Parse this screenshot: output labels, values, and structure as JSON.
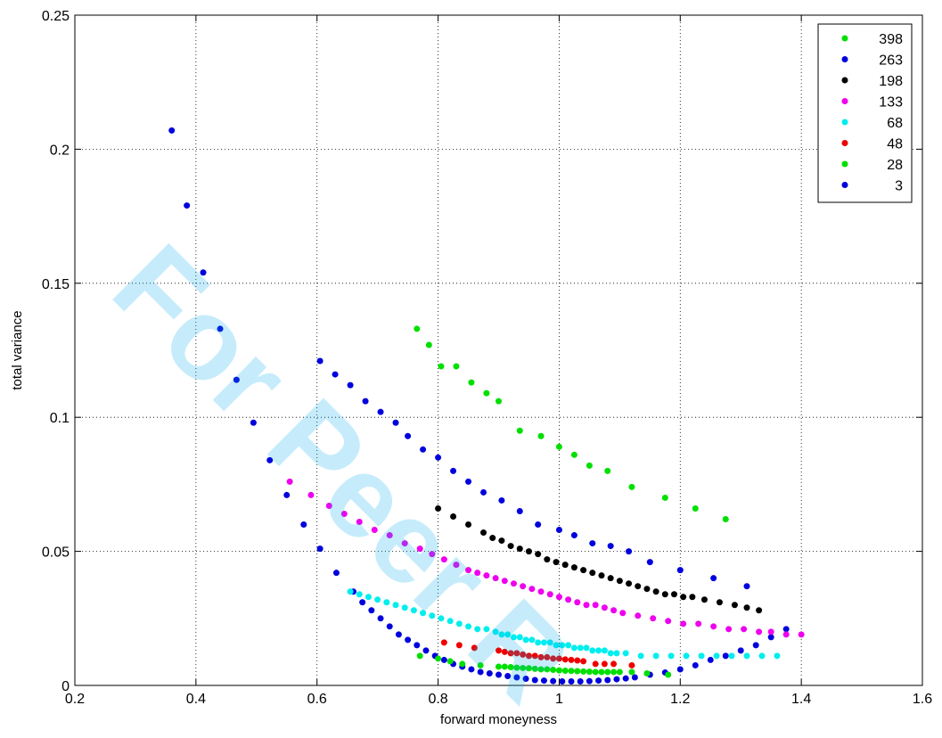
{
  "chart_data": {
    "type": "scatter",
    "title": "",
    "xlabel": "forward moneyness",
    "ylabel": "total variance",
    "xlim": [
      0.2,
      1.6
    ],
    "ylim": [
      0,
      0.25
    ],
    "xticks": [
      0.2,
      0.4,
      0.6,
      0.8,
      1,
      1.2,
      1.4,
      1.6
    ],
    "yticks": [
      0,
      0.05,
      0.1,
      0.15,
      0.2,
      0.25
    ],
    "xtick_labels": [
      "0.2",
      "0.4",
      "0.6",
      "0.8",
      "1",
      "1.2",
      "1.4",
      "1.6"
    ],
    "ytick_labels": [
      "0",
      "0.05",
      "0.1",
      "0.15",
      "0.2",
      "0.25"
    ],
    "grid": true,
    "legend_position": "top-right",
    "watermark": "For Peer R",
    "series": [
      {
        "name": "398",
        "color": "#00e000",
        "x": [
          0.765,
          0.785,
          0.805,
          0.83,
          0.855,
          0.88,
          0.9,
          0.935,
          0.97,
          1.0,
          1.025,
          1.05,
          1.08,
          1.12,
          1.175,
          1.225,
          1.275
        ],
        "y": [
          0.133,
          0.127,
          0.119,
          0.119,
          0.113,
          0.109,
          0.106,
          0.095,
          0.093,
          0.089,
          0.086,
          0.082,
          0.08,
          0.074,
          0.07,
          0.066,
          0.062
        ]
      },
      {
        "name": "263",
        "color": "#0000dd",
        "x": [
          0.605,
          0.63,
          0.655,
          0.68,
          0.705,
          0.73,
          0.75,
          0.775,
          0.8,
          0.825,
          0.85,
          0.875,
          0.905,
          0.935,
          0.965,
          1.0,
          1.025,
          1.055,
          1.085,
          1.115,
          1.15,
          1.2,
          1.255,
          1.31
        ],
        "y": [
          0.121,
          0.116,
          0.112,
          0.106,
          0.102,
          0.098,
          0.093,
          0.088,
          0.085,
          0.08,
          0.076,
          0.072,
          0.069,
          0.065,
          0.06,
          0.058,
          0.056,
          0.053,
          0.052,
          0.05,
          0.046,
          0.043,
          0.04,
          0.037
        ]
      },
      {
        "name": "198",
        "color": "#000000",
        "x": [
          0.8,
          0.825,
          0.85,
          0.875,
          0.89,
          0.905,
          0.92,
          0.935,
          0.95,
          0.965,
          0.98,
          0.995,
          1.01,
          1.025,
          1.04,
          1.055,
          1.07,
          1.085,
          1.1,
          1.115,
          1.13,
          1.145,
          1.16,
          1.175,
          1.19,
          1.205,
          1.22,
          1.24,
          1.265,
          1.29,
          1.31,
          1.33
        ],
        "y": [
          0.066,
          0.063,
          0.06,
          0.057,
          0.055,
          0.054,
          0.052,
          0.051,
          0.05,
          0.049,
          0.047,
          0.046,
          0.045,
          0.044,
          0.043,
          0.042,
          0.041,
          0.04,
          0.039,
          0.038,
          0.037,
          0.036,
          0.035,
          0.034,
          0.034,
          0.033,
          0.033,
          0.032,
          0.031,
          0.03,
          0.029,
          0.028
        ]
      },
      {
        "name": "133",
        "color": "#ee00ee",
        "x": [
          0.555,
          0.59,
          0.62,
          0.645,
          0.67,
          0.695,
          0.72,
          0.745,
          0.77,
          0.79,
          0.81,
          0.83,
          0.85,
          0.865,
          0.88,
          0.895,
          0.91,
          0.925,
          0.94,
          0.955,
          0.97,
          0.985,
          1.0,
          1.015,
          1.03,
          1.045,
          1.06,
          1.075,
          1.09,
          1.105,
          1.13,
          1.155,
          1.18,
          1.205,
          1.23,
          1.255,
          1.28,
          1.305,
          1.33,
          1.35,
          1.375,
          1.4
        ],
        "y": [
          0.076,
          0.071,
          0.067,
          0.064,
          0.061,
          0.058,
          0.056,
          0.053,
          0.051,
          0.049,
          0.047,
          0.045,
          0.043,
          0.042,
          0.041,
          0.04,
          0.039,
          0.038,
          0.037,
          0.036,
          0.035,
          0.034,
          0.033,
          0.032,
          0.031,
          0.03,
          0.03,
          0.029,
          0.028,
          0.027,
          0.026,
          0.025,
          0.024,
          0.023,
          0.023,
          0.022,
          0.021,
          0.021,
          0.02,
          0.02,
          0.019,
          0.019
        ]
      },
      {
        "name": "68",
        "color": "#00eeee",
        "x": [
          0.655,
          0.67,
          0.685,
          0.7,
          0.715,
          0.73,
          0.745,
          0.76,
          0.775,
          0.79,
          0.805,
          0.82,
          0.835,
          0.85,
          0.865,
          0.88,
          0.895,
          0.905,
          0.915,
          0.925,
          0.935,
          0.945,
          0.955,
          0.965,
          0.975,
          0.985,
          0.995,
          1.005,
          1.015,
          1.025,
          1.035,
          1.045,
          1.055,
          1.065,
          1.075,
          1.085,
          1.095,
          1.11,
          1.135,
          1.16,
          1.185,
          1.21,
          1.235,
          1.26,
          1.285,
          1.31,
          1.335,
          1.36
        ],
        "y": [
          0.035,
          0.034,
          0.033,
          0.032,
          0.031,
          0.03,
          0.029,
          0.028,
          0.027,
          0.026,
          0.025,
          0.024,
          0.023,
          0.022,
          0.021,
          0.021,
          0.02,
          0.019,
          0.019,
          0.018,
          0.018,
          0.017,
          0.017,
          0.016,
          0.016,
          0.016,
          0.015,
          0.015,
          0.015,
          0.014,
          0.014,
          0.014,
          0.013,
          0.013,
          0.013,
          0.012,
          0.012,
          0.012,
          0.011,
          0.011,
          0.011,
          0.011,
          0.011,
          0.011,
          0.011,
          0.011,
          0.011,
          0.011
        ]
      },
      {
        "name": "48",
        "color": "#ee0000",
        "x": [
          0.81,
          0.835,
          0.86,
          0.9,
          0.91,
          0.92,
          0.93,
          0.94,
          0.95,
          0.96,
          0.97,
          0.98,
          0.99,
          1.0,
          1.01,
          1.02,
          1.03,
          1.04,
          1.06,
          1.075,
          1.09,
          1.12
        ],
        "y": [
          0.016,
          0.015,
          0.014,
          0.013,
          0.0125,
          0.012,
          0.012,
          0.0115,
          0.011,
          0.011,
          0.0105,
          0.0105,
          0.01,
          0.01,
          0.0097,
          0.0095,
          0.0093,
          0.009,
          0.008,
          0.008,
          0.008,
          0.0075
        ]
      },
      {
        "name": "28",
        "color": "#00e000",
        "x": [
          0.77,
          0.8,
          0.82,
          0.84,
          0.87,
          0.9,
          0.91,
          0.92,
          0.93,
          0.94,
          0.95,
          0.96,
          0.97,
          0.98,
          0.99,
          1.0,
          1.01,
          1.02,
          1.03,
          1.04,
          1.05,
          1.06,
          1.07,
          1.08,
          1.09,
          1.1,
          1.12,
          1.145,
          1.18
        ],
        "y": [
          0.011,
          0.01,
          0.009,
          0.008,
          0.0075,
          0.007,
          0.007,
          0.0068,
          0.0066,
          0.0065,
          0.0064,
          0.0062,
          0.006,
          0.006,
          0.0058,
          0.0056,
          0.0055,
          0.0054,
          0.0053,
          0.0052,
          0.0051,
          0.005,
          0.005,
          0.005,
          0.005,
          0.005,
          0.005,
          0.0045,
          0.004
        ]
      },
      {
        "name": "3",
        "color": "#0000dd",
        "x": [
          0.36,
          0.385,
          0.412,
          0.44,
          0.467,
          0.495,
          0.522,
          0.55,
          0.578,
          0.605,
          0.632,
          0.66,
          0.675,
          0.69,
          0.705,
          0.72,
          0.735,
          0.75,
          0.765,
          0.78,
          0.795,
          0.81,
          0.825,
          0.84,
          0.855,
          0.87,
          0.885,
          0.9,
          0.915,
          0.93,
          0.945,
          0.96,
          0.975,
          0.99,
          1.005,
          1.02,
          1.035,
          1.05,
          1.065,
          1.08,
          1.095,
          1.11,
          1.125,
          1.15,
          1.175,
          1.2,
          1.225,
          1.25,
          1.275,
          1.3,
          1.325,
          1.35,
          1.375
        ],
        "y": [
          0.207,
          0.179,
          0.154,
          0.133,
          0.114,
          0.098,
          0.084,
          0.071,
          0.06,
          0.051,
          0.042,
          0.035,
          0.031,
          0.028,
          0.025,
          0.022,
          0.019,
          0.017,
          0.015,
          0.013,
          0.011,
          0.0095,
          0.008,
          0.007,
          0.006,
          0.005,
          0.0045,
          0.004,
          0.0035,
          0.003,
          0.0025,
          0.002,
          0.0018,
          0.0016,
          0.0015,
          0.0015,
          0.0015,
          0.0016,
          0.0018,
          0.002,
          0.0023,
          0.0026,
          0.003,
          0.004,
          0.0048,
          0.006,
          0.0075,
          0.0095,
          0.011,
          0.013,
          0.015,
          0.018,
          0.021
        ]
      }
    ]
  }
}
